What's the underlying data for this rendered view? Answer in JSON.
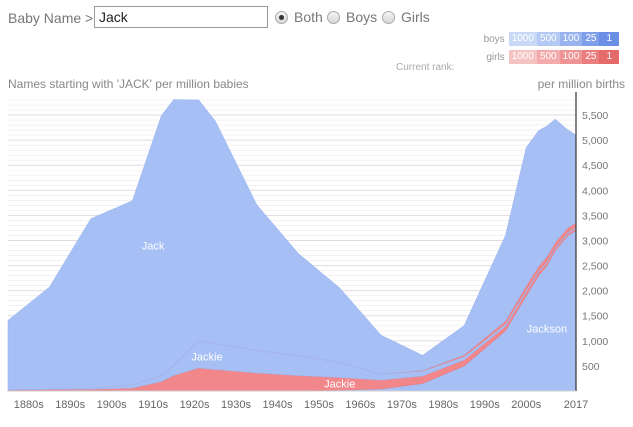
{
  "header": {
    "name_label": "Baby Name >",
    "name_value": "Jack",
    "radios": [
      {
        "label": "Both",
        "selected": true
      },
      {
        "label": "Boys",
        "selected": false
      },
      {
        "label": "Girls",
        "selected": false
      }
    ]
  },
  "rank_legend": {
    "boys_label": "boys",
    "girls_label": "girls",
    "current_rank_label": "Current rank:",
    "ranks": [
      "1000",
      "500",
      "100",
      "25",
      "1"
    ],
    "boys_colors": [
      "#c9d8f7",
      "#b3c8f3",
      "#98b3ee",
      "#7f9fea",
      "#6a8fe4"
    ],
    "girls_colors": [
      "#f6c3c3",
      "#f2aaaa",
      "#ee9494",
      "#ea7e7e",
      "#e56a6a"
    ]
  },
  "chart_title": "Names starting with 'JACK' per million babies",
  "unit_label": "per million births",
  "colors": {
    "boys": "#a6bff5",
    "girls": "#f1878b",
    "grid": "#e2d9e2",
    "axis": "#333333"
  },
  "chart_data": {
    "type": "area",
    "stacked": true,
    "title": "Names starting with 'JACK' per million babies",
    "ylabel": "per million births",
    "ylim": [
      0,
      5800
    ],
    "x": [
      1880,
      1890,
      1900,
      1910,
      1917,
      1920,
      1926,
      1930,
      1940,
      1950,
      1960,
      1970,
      1980,
      1990,
      2000,
      2005,
      2008,
      2010,
      2012,
      2015,
      2017
    ],
    "series": [
      {
        "name": "Jackson (boys)",
        "gender": "boys",
        "values": [
          10,
          10,
          10,
          10,
          10,
          10,
          10,
          10,
          10,
          10,
          20,
          40,
          150,
          500,
          1200,
          1900,
          2300,
          2500,
          2800,
          3100,
          3200
        ]
      },
      {
        "name": "Jackie (girls)",
        "gender": "girls",
        "values": [
          10,
          20,
          25,
          50,
          180,
          300,
          450,
          420,
          350,
          300,
          250,
          180,
          150,
          120,
          90,
          80,
          70,
          60,
          50,
          40,
          40
        ]
      },
      {
        "name": "Jackie (boys)",
        "gender": "boys",
        "values": [
          5,
          10,
          20,
          60,
          120,
          200,
          550,
          520,
          450,
          400,
          300,
          120,
          100,
          70,
          50,
          40,
          30,
          30,
          25,
          25,
          25
        ]
      },
      {
        "name": "Jackson (girls)",
        "gender": "girls",
        "values": [
          0,
          0,
          0,
          0,
          0,
          0,
          0,
          0,
          0,
          0,
          0,
          0,
          10,
          30,
          60,
          80,
          90,
          90,
          90,
          90,
          90
        ]
      },
      {
        "name": "Jack (boys)",
        "gender": "boys",
        "values": [
          1380,
          2030,
          3380,
          3670,
          5180,
          5300,
          4790,
          4430,
          2900,
          2030,
          1480,
          770,
          300,
          580,
          1700,
          2750,
          2700,
          2600,
          2450,
          1950,
          1745
        ]
      }
    ],
    "area_labels": [
      {
        "text": "Jack",
        "series": "Jack (boys)"
      },
      {
        "text": "Jackie",
        "series": "Jackie (boys)"
      },
      {
        "text": "Jackie",
        "series": "Jackie (girls)"
      },
      {
        "text": "Jackson",
        "series": "Jackson (boys)"
      }
    ],
    "y_ticks": [
      500,
      1000,
      1500,
      2000,
      2500,
      3000,
      3500,
      4000,
      4500,
      5000,
      5500
    ],
    "y_tick_labels": [
      "500",
      "1,000",
      "1,500",
      "2,000",
      "2,500",
      "3,000",
      "3,500",
      "4,000",
      "4,500",
      "5,000",
      "5,500"
    ],
    "x_tick_labels": [
      {
        "label": "1880s",
        "year": 1885
      },
      {
        "label": "1890s",
        "year": 1895
      },
      {
        "label": "1900s",
        "year": 1905
      },
      {
        "label": "1910s",
        "year": 1915
      },
      {
        "label": "1920s",
        "year": 1925
      },
      {
        "label": "1930s",
        "year": 1935
      },
      {
        "label": "1940s",
        "year": 1945
      },
      {
        "label": "1950s",
        "year": 1955
      },
      {
        "label": "1960s",
        "year": 1965
      },
      {
        "label": "1970s",
        "year": 1975
      },
      {
        "label": "1980s",
        "year": 1985
      },
      {
        "label": "1990s",
        "year": 1995
      },
      {
        "label": "2000s",
        "year": 2005
      },
      {
        "label": "2017",
        "year": 2017
      }
    ]
  }
}
